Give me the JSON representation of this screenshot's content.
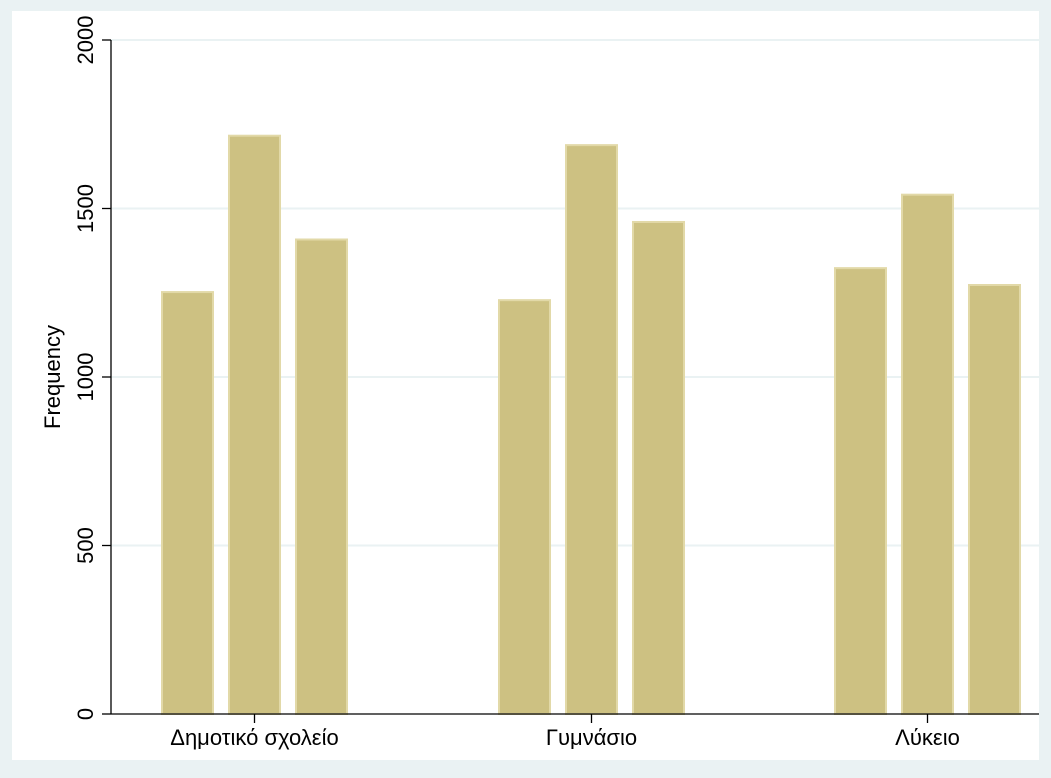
{
  "chart_data": {
    "type": "bar",
    "title": "",
    "xlabel": "",
    "ylabel": "Frequency",
    "ylim": [
      0,
      2000
    ],
    "yticks": [
      0,
      500,
      1000,
      1500,
      2000
    ],
    "grid": true,
    "legend": "none",
    "categories": [
      "Δημοτικό σχολείο",
      "Γυμνάσιο",
      "Λύκειο"
    ],
    "series": [
      {
        "values": [
          1252,
          1228,
          1323
        ]
      },
      {
        "values": [
          1716,
          1688,
          1541
        ]
      },
      {
        "values": [
          1408,
          1460,
          1273
        ]
      }
    ],
    "colors": {
      "background": "#eaf2f3",
      "plot": "#ffffff",
      "bar": "#cdc182",
      "bar_edge": "#e2d9a8",
      "grid": "#eaf2f3",
      "axis": "#000000"
    }
  }
}
